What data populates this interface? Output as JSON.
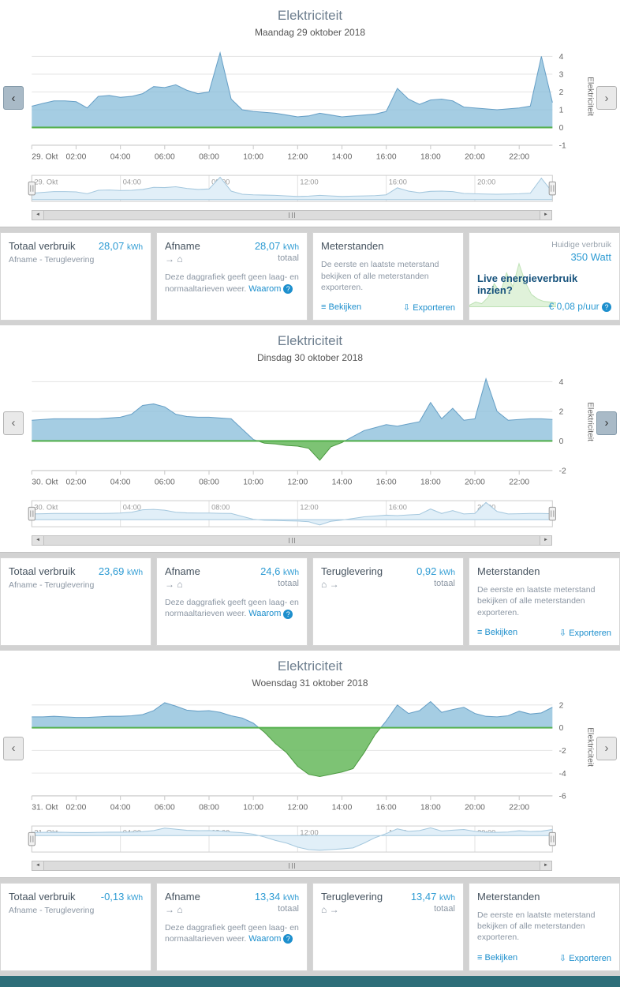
{
  "icons": {
    "prev": "‹",
    "next": "›",
    "scroll_left": "◄",
    "scroll_right": "►",
    "list": "≡",
    "download": "⇩",
    "help": "?"
  },
  "panels": [
    {
      "title": "Elektriciteit",
      "date": "Maandag 29 oktober 2018",
      "nav_highlight": "prev",
      "cards": {
        "totaal": {
          "label": "Totaal verbruik",
          "value": "28,07",
          "unit": "kWh",
          "sub": "Afname - Teruglevering"
        },
        "afname": {
          "label": "Afname",
          "value": "28,07",
          "unit": "kWh",
          "flow": "→ ⌂",
          "flow_caption": "totaal",
          "note": "Deze daggrafiek geeft geen laag- en normaaltarieven weer.",
          "note_link": "Waarom"
        },
        "meterstanden": {
          "label": "Meterstanden",
          "desc": "De eerste en laatste meterstand bekijken of alle meterstanden exporteren.",
          "view": "Bekijken",
          "export": "Exporteren"
        },
        "promo": {
          "muted": "Huidige verbruik",
          "watt": "350 Watt",
          "headline": "Live energieverbruik inzien?",
          "price": "€ 0,08 p/uur",
          "spark": [
            0.1,
            0.3,
            0.2,
            0.6,
            1.5,
            0.9,
            2.2,
            1.3,
            2.8,
            1.6,
            0.8,
            0.5,
            0.35,
            0.3,
            0.25
          ]
        }
      }
    },
    {
      "title": "Elektriciteit",
      "date": "Dinsdag 30 oktober 2018",
      "nav_highlight": "next",
      "cards": {
        "totaal": {
          "label": "Totaal verbruik",
          "value": "23,69",
          "unit": "kWh",
          "sub": "Afname - Teruglevering"
        },
        "afname": {
          "label": "Afname",
          "value": "24,6",
          "unit": "kWh",
          "flow": "→ ⌂",
          "flow_caption": "totaal",
          "note": "Deze daggrafiek geeft geen laag- en normaaltarieven weer.",
          "note_link": "Waarom"
        },
        "teruglevering": {
          "label": "Teruglevering",
          "value": "0,92",
          "unit": "kWh",
          "flow": "⌂ →",
          "flow_caption": "totaal"
        },
        "meterstanden": {
          "label": "Meterstanden",
          "desc": "De eerste en laatste meterstand bekijken of alle meterstanden exporteren.",
          "view": "Bekijken",
          "export": "Exporteren"
        }
      }
    },
    {
      "title": "Elektriciteit",
      "date": "Woensdag 31 oktober 2018",
      "nav_highlight": "none",
      "cards": {
        "totaal": {
          "label": "Totaal verbruik",
          "value": "-0,13",
          "unit": "kWh",
          "sub": "Afname - Teruglevering"
        },
        "afname": {
          "label": "Afname",
          "value": "13,34",
          "unit": "kWh",
          "flow": "→ ⌂",
          "flow_caption": "totaal",
          "note": "Deze daggrafiek geeft geen laag- en normaaltarieven weer.",
          "note_link": "Waarom"
        },
        "teruglevering": {
          "label": "Teruglevering",
          "value": "13,47",
          "unit": "kWh",
          "flow": "⌂ →",
          "flow_caption": "totaal"
        },
        "meterstanden": {
          "label": "Meterstanden",
          "desc": "De eerste en laatste meterstand bekijken of alle meterstanden exporteren.",
          "view": "Bekijken",
          "export": "Exporteren"
        }
      }
    }
  ],
  "chart_data": [
    {
      "type": "area",
      "title": "Elektriciteit — Maandag 29 oktober 2018",
      "ylabel": "Elektriciteit",
      "unit": "kW",
      "x_start": "00:00",
      "x_interval_minutes": 30,
      "ylim": [
        -1,
        4.5
      ],
      "yticks": [
        -1,
        0,
        1,
        2,
        3,
        4
      ],
      "x_labels": [
        "29. Okt",
        "02:00",
        "04:00",
        "06:00",
        "08:00",
        "10:00",
        "12:00",
        "14:00",
        "16:00",
        "18:00",
        "20:00",
        "22:00"
      ],
      "nav_labels": [
        "29. Okt",
        "04:00",
        "08:00",
        "12:00",
        "16:00",
        "20:00"
      ],
      "colors": {
        "positive": "#8fc0dc",
        "negative": "#66b85c",
        "zero_line": "#56b14f"
      },
      "values": [
        1.2,
        1.35,
        1.5,
        1.5,
        1.45,
        1.1,
        1.75,
        1.8,
        1.7,
        1.75,
        1.9,
        2.3,
        2.25,
        2.4,
        2.1,
        1.9,
        2.0,
        4.2,
        1.6,
        1.0,
        0.9,
        0.85,
        0.8,
        0.7,
        0.6,
        0.65,
        0.8,
        0.7,
        0.6,
        0.65,
        0.7,
        0.75,
        0.9,
        2.2,
        1.6,
        1.3,
        1.55,
        1.6,
        1.5,
        1.15,
        1.1,
        1.05,
        1.0,
        1.05,
        1.1,
        1.2,
        4.0,
        1.4
      ]
    },
    {
      "type": "area",
      "title": "Elektriciteit — Dinsdag 30 oktober 2018",
      "ylabel": "Elektriciteit",
      "unit": "kW",
      "x_start": "00:00",
      "x_interval_minutes": 30,
      "ylim": [
        -2,
        4.6
      ],
      "yticks": [
        -2,
        0,
        2,
        4
      ],
      "x_labels": [
        "30. Okt",
        "02:00",
        "04:00",
        "06:00",
        "08:00",
        "10:00",
        "12:00",
        "14:00",
        "16:00",
        "18:00",
        "20:00",
        "22:00"
      ],
      "nav_labels": [
        "30. Okt",
        "04:00",
        "08:00",
        "12:00",
        "16:00",
        "20:00"
      ],
      "colors": {
        "positive": "#8fc0dc",
        "negative": "#66b85c",
        "zero_line": "#56b14f"
      },
      "values": [
        1.4,
        1.45,
        1.5,
        1.5,
        1.5,
        1.5,
        1.5,
        1.55,
        1.6,
        1.8,
        2.4,
        2.5,
        2.3,
        1.8,
        1.65,
        1.6,
        1.6,
        1.55,
        1.5,
        0.8,
        0.1,
        -0.15,
        -0.2,
        -0.3,
        -0.35,
        -0.5,
        -1.3,
        -0.4,
        -0.1,
        0.3,
        0.7,
        0.9,
        1.1,
        1.0,
        1.15,
        1.3,
        2.6,
        1.5,
        2.2,
        1.4,
        1.5,
        4.2,
        2.0,
        1.4,
        1.45,
        1.5,
        1.5,
        1.45
      ]
    },
    {
      "type": "area",
      "title": "Elektriciteit — Woensdag 31 oktober 2018",
      "ylabel": "Elektriciteit",
      "unit": "kW",
      "x_start": "00:00",
      "x_interval_minutes": 30,
      "ylim": [
        -6,
        2.6
      ],
      "yticks": [
        -6,
        -4,
        -2,
        0,
        2
      ],
      "x_labels": [
        "31. Okt",
        "02:00",
        "04:00",
        "06:00",
        "08:00",
        "10:00",
        "12:00",
        "14:00",
        "16:00",
        "18:00",
        "20:00",
        "22:00"
      ],
      "nav_labels": [
        "31. Okt",
        "04:00",
        "08:00",
        "12:00",
        "16:00",
        "20:00"
      ],
      "colors": {
        "positive": "#8fc0dc",
        "negative": "#66b85c",
        "zero_line": "#56b14f"
      },
      "values": [
        0.95,
        0.95,
        1.0,
        0.95,
        0.9,
        0.9,
        0.95,
        1.0,
        1.0,
        1.05,
        1.15,
        1.5,
        2.2,
        1.9,
        1.55,
        1.45,
        1.5,
        1.35,
        1.05,
        0.85,
        0.4,
        -0.4,
        -1.4,
        -2.2,
        -3.4,
        -4.1,
        -4.3,
        -4.1,
        -3.9,
        -3.6,
        -2.2,
        -0.6,
        0.6,
        2.0,
        1.25,
        1.5,
        2.3,
        1.35,
        1.6,
        1.8,
        1.25,
        1.0,
        0.95,
        1.05,
        1.45,
        1.2,
        1.3,
        1.8
      ]
    }
  ]
}
